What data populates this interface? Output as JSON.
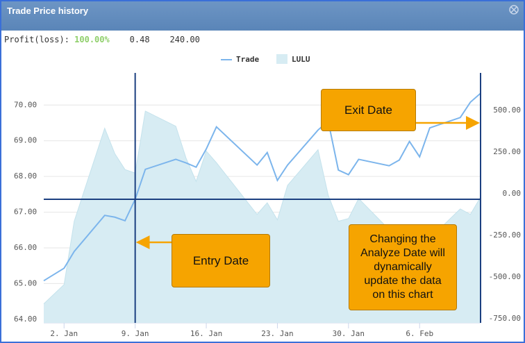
{
  "window": {
    "title": "Trade Price history"
  },
  "stats": {
    "label": "Profit(loss):",
    "percent": "100.00%",
    "values": [
      "0.48",
      "240.00"
    ]
  },
  "chart_data": {
    "type": "line",
    "legend": "top",
    "grid": true,
    "x": [
      0,
      2,
      3,
      6,
      7,
      8,
      9,
      10,
      13,
      14,
      15,
      16,
      17,
      21,
      22,
      23,
      24,
      27,
      28,
      29,
      30,
      31,
      34,
      35,
      36,
      37,
      38,
      41,
      42,
      43
    ],
    "xlim": [
      0,
      43
    ],
    "xticks": [
      {
        "value": 2,
        "label": "2. Jan"
      },
      {
        "value": 9,
        "label": "9. Jan"
      },
      {
        "value": 16,
        "label": "16. Jan"
      },
      {
        "value": 23,
        "label": "23. Jan"
      },
      {
        "value": 30,
        "label": "30. Jan"
      },
      {
        "value": 37,
        "label": "6. Feb"
      }
    ],
    "ylim": [
      63.9,
      70.9
    ],
    "yticks": [
      {
        "value": 64,
        "label": "64.00"
      },
      {
        "value": 65,
        "label": "65.00"
      },
      {
        "value": 66,
        "label": "66.00"
      },
      {
        "value": 67,
        "label": "67.00"
      },
      {
        "value": 68,
        "label": "68.00"
      },
      {
        "value": 69,
        "label": "69.00"
      },
      {
        "value": 70,
        "label": "70.00"
      }
    ],
    "y2lim": [
      -775,
      725
    ],
    "y2ticks": [
      {
        "value": -750,
        "label": "-750.00"
      },
      {
        "value": -500,
        "label": "-500.00"
      },
      {
        "value": -250,
        "label": "-250.00"
      },
      {
        "value": 0,
        "label": "0.00"
      },
      {
        "value": 250,
        "label": "250.00"
      },
      {
        "value": 500,
        "label": "500.00"
      }
    ],
    "series": [
      {
        "name": "Trade",
        "type": "line",
        "color": "#7cb5ec",
        "values": [
          65.08,
          65.43,
          65.9,
          66.91,
          66.86,
          66.76,
          67.36,
          68.2,
          68.48,
          68.38,
          68.26,
          68.77,
          69.39,
          68.32,
          68.67,
          67.89,
          68.32,
          69.3,
          69.55,
          68.18,
          68.05,
          68.48,
          68.3,
          68.46,
          68.98,
          68.55,
          69.36,
          69.65,
          70.08,
          70.33
        ]
      },
      {
        "name": "LULU",
        "type": "area",
        "axis": "y2",
        "color": "#d7ecf3",
        "values": [
          -661,
          -545,
          -165,
          393,
          240,
          145,
          124,
          496,
          405,
          215,
          74,
          256,
          186,
          -124,
          -54,
          -157,
          50,
          264,
          -8,
          -165,
          -149,
          -29,
          -215,
          -248,
          -331,
          -289,
          -269,
          -91,
          -124,
          -21
        ]
      }
    ],
    "markers": {
      "entry_x": 9,
      "exit_x": 43,
      "entry_level": 67.36
    },
    "annotations": {
      "exit": "Exit Date",
      "entry": "Entry Date",
      "note": [
        "Changing the",
        "Analyze Date will",
        "dynamically",
        "update the data",
        "on this chart"
      ]
    }
  }
}
